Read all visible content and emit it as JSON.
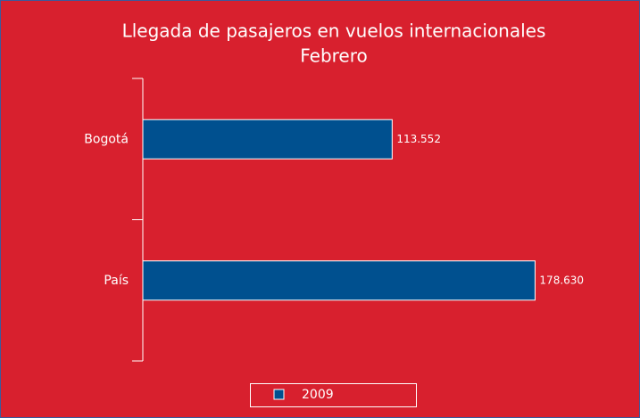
{
  "chart_data": {
    "type": "bar",
    "orientation": "horizontal",
    "title": "Llegada de pasajeros en vuelos internacionales",
    "subtitle": "Febrero",
    "categories": [
      "Bogotá",
      "País"
    ],
    "series": [
      {
        "name": "2009",
        "color": "#00508f",
        "values": [
          113552,
          178630
        ],
        "value_labels": [
          "113.552",
          "178.630"
        ]
      }
    ],
    "xlim": [
      0,
      200000
    ],
    "legend": "bottom"
  }
}
